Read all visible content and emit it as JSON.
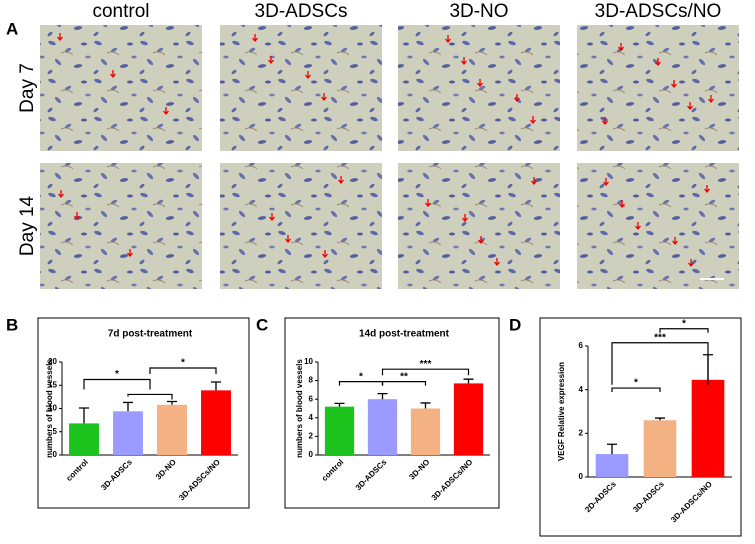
{
  "figure": {
    "panel_labels": [
      "A",
      "B",
      "C",
      "D"
    ],
    "columns": [
      "control",
      "3D-ADSCs",
      "3D-NO",
      "3D-ADSCs/NO"
    ],
    "rows": [
      "Day 7",
      "Day 14"
    ]
  },
  "chart_data": [
    {
      "type": "bar",
      "title": "7d post-treatment",
      "y_label": "numbers of blood vessels",
      "categories": [
        "control",
        "3D-ADSCs",
        "3D-NO",
        "3D-ADSCs/NO"
      ],
      "values": [
        6.8,
        9.4,
        10.8,
        13.9
      ],
      "errors": [
        3.3,
        1.9,
        0.7,
        1.8
      ],
      "colors": [
        "#1ec41e",
        "#9b9bff",
        "#f4b183",
        "#ff0000"
      ],
      "ylim": [
        0,
        20
      ],
      "yticks": [
        0,
        5,
        10,
        15,
        20
      ],
      "annotations": [
        "*",
        "*"
      ]
    },
    {
      "type": "bar",
      "title": "14d post-treatment",
      "y_label": "numbers of blood vessels",
      "categories": [
        "control",
        "3D-ADSCs",
        "3D-NO",
        "3D-ADSCs/NO"
      ],
      "values": [
        5.2,
        6.0,
        5.0,
        7.7
      ],
      "errors": [
        0.35,
        0.6,
        0.6,
        0.45
      ],
      "colors": [
        "#1ec41e",
        "#9b9bff",
        "#f4b183",
        "#ff0000"
      ],
      "ylim": [
        0,
        10
      ],
      "yticks": [
        0,
        2,
        4,
        6,
        8,
        10
      ],
      "annotations": [
        "*",
        "**",
        "***"
      ]
    },
    {
      "type": "bar",
      "y_label": "VEGF Relative expression",
      "categories": [
        "2D-ADSCs",
        "3D-ADSCs",
        "3D-ADSCs/NO"
      ],
      "values": [
        1.05,
        2.6,
        4.45
      ],
      "errors": [
        0.45,
        0.1,
        1.15
      ],
      "colors": [
        "#9b9bff",
        "#f4b183",
        "#ff0000"
      ],
      "ylim": [
        0,
        6
      ],
      "yticks": [
        0,
        2,
        4,
        6
      ],
      "annotations": [
        "*",
        "*",
        "***"
      ]
    }
  ]
}
